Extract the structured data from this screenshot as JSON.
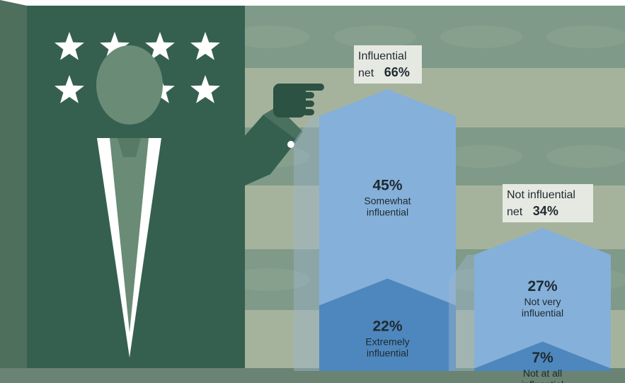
{
  "chart_data": {
    "type": "bar",
    "title": "",
    "xlabel": "",
    "ylabel": "",
    "ylim": [
      0,
      70
    ],
    "groups": [
      {
        "net_label": "Influential",
        "net_prefix": "net",
        "net_value": "66%",
        "segments": [
          {
            "value": 22,
            "label": "22%",
            "desc": [
              "Extremely",
              "influential"
            ],
            "color": "#4e87be"
          },
          {
            "value": 45,
            "label": "45%",
            "desc": [
              "Somewhat",
              "influential"
            ],
            "color": "#85b0da"
          }
        ]
      },
      {
        "net_label": "Not influential",
        "net_prefix": "net",
        "net_value": "34%",
        "segments": [
          {
            "value": 7,
            "label": "7%",
            "desc": [
              "Not at all",
              "influential"
            ],
            "color": "#4e87be"
          },
          {
            "value": 27,
            "label": "27%",
            "desc": [
              "Not very",
              "influential"
            ],
            "color": "#85b0da"
          }
        ]
      }
    ],
    "colors": {
      "suit": "#356050",
      "suit_dark": "#2c5244",
      "skin": "#6a8b75",
      "bg_band_light": "#a6b39c",
      "bg_band_dark": "#7f9a88",
      "label_bg": "#e6e9e2"
    }
  }
}
